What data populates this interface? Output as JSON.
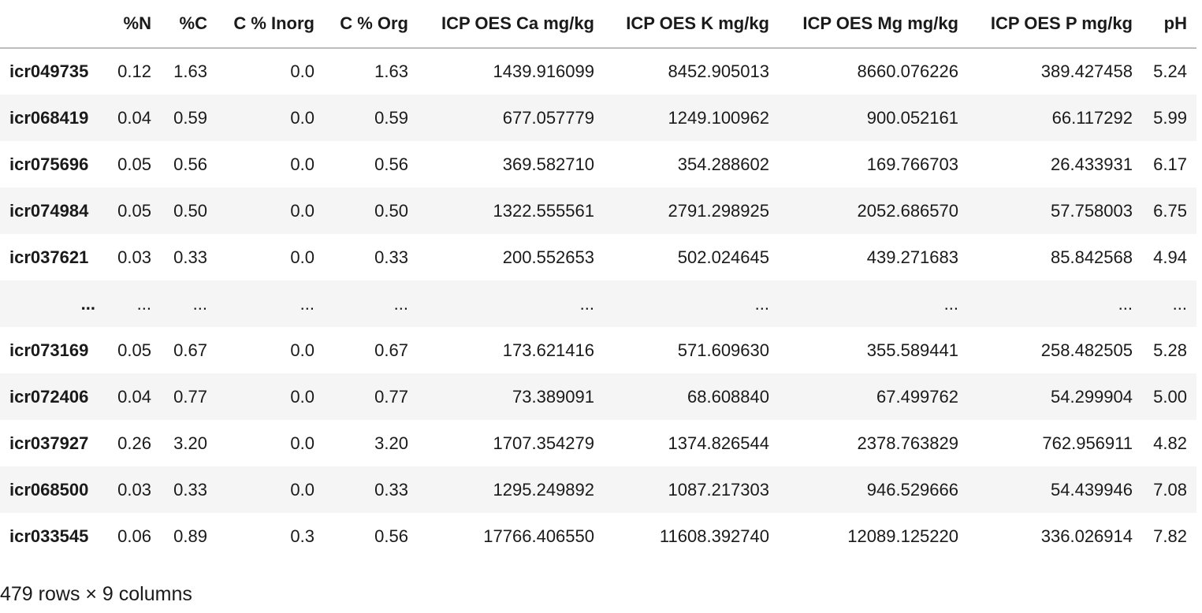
{
  "table": {
    "index_header": "",
    "columns": [
      "%N",
      "%C",
      "C % Inorg",
      "C % Org",
      "ICP OES Ca mg/kg",
      "ICP OES K mg/kg",
      "ICP OES Mg mg/kg",
      "ICP OES P mg/kg",
      "pH"
    ],
    "rows": [
      {
        "index": "icr049735",
        "cells": [
          "0.12",
          "1.63",
          "0.0",
          "1.63",
          "1439.916099",
          "8452.905013",
          "8660.076226",
          "389.427458",
          "5.24"
        ]
      },
      {
        "index": "icr068419",
        "cells": [
          "0.04",
          "0.59",
          "0.0",
          "0.59",
          "677.057779",
          "1249.100962",
          "900.052161",
          "66.117292",
          "5.99"
        ]
      },
      {
        "index": "icr075696",
        "cells": [
          "0.05",
          "0.56",
          "0.0",
          "0.56",
          "369.582710",
          "354.288602",
          "169.766703",
          "26.433931",
          "6.17"
        ]
      },
      {
        "index": "icr074984",
        "cells": [
          "0.05",
          "0.50",
          "0.0",
          "0.50",
          "1322.555561",
          "2791.298925",
          "2052.686570",
          "57.758003",
          "6.75"
        ]
      },
      {
        "index": "icr037621",
        "cells": [
          "0.03",
          "0.33",
          "0.0",
          "0.33",
          "200.552653",
          "502.024645",
          "439.271683",
          "85.842568",
          "4.94"
        ]
      },
      {
        "index": "...",
        "cells": [
          "...",
          "...",
          "...",
          "...",
          "...",
          "...",
          "...",
          "...",
          "..."
        ],
        "ellipsis": true
      },
      {
        "index": "icr073169",
        "cells": [
          "0.05",
          "0.67",
          "0.0",
          "0.67",
          "173.621416",
          "571.609630",
          "355.589441",
          "258.482505",
          "5.28"
        ]
      },
      {
        "index": "icr072406",
        "cells": [
          "0.04",
          "0.77",
          "0.0",
          "0.77",
          "73.389091",
          "68.608840",
          "67.499762",
          "54.299904",
          "5.00"
        ]
      },
      {
        "index": "icr037927",
        "cells": [
          "0.26",
          "3.20",
          "0.0",
          "3.20",
          "1707.354279",
          "1374.826544",
          "2378.763829",
          "762.956911",
          "4.82"
        ]
      },
      {
        "index": "icr068500",
        "cells": [
          "0.03",
          "0.33",
          "0.0",
          "0.33",
          "1295.249892",
          "1087.217303",
          "946.529666",
          "54.439946",
          "7.08"
        ]
      },
      {
        "index": "icr033545",
        "cells": [
          "0.06",
          "0.89",
          "0.3",
          "0.56",
          "17766.406550",
          "11608.392740",
          "12089.125220",
          "336.026914",
          "7.82"
        ]
      }
    ]
  },
  "shape_note": "479 rows × 9 columns"
}
